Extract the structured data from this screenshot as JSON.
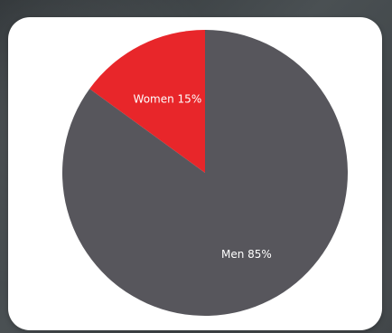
{
  "chart_data": {
    "type": "pie",
    "title": "",
    "slices": [
      {
        "label": "Women 15%",
        "category": "Women",
        "value": 15,
        "color": "#e8262a"
      },
      {
        "label": "Men 85%",
        "category": "Men",
        "value": 85,
        "color": "#57565c"
      }
    ],
    "start_angle": "12 o'clock",
    "direction": "counterclockwise",
    "legend": "none",
    "labels": "inside-slices"
  },
  "colors": {
    "card_background": "#ffffff",
    "page_background": "#3f4447"
  }
}
